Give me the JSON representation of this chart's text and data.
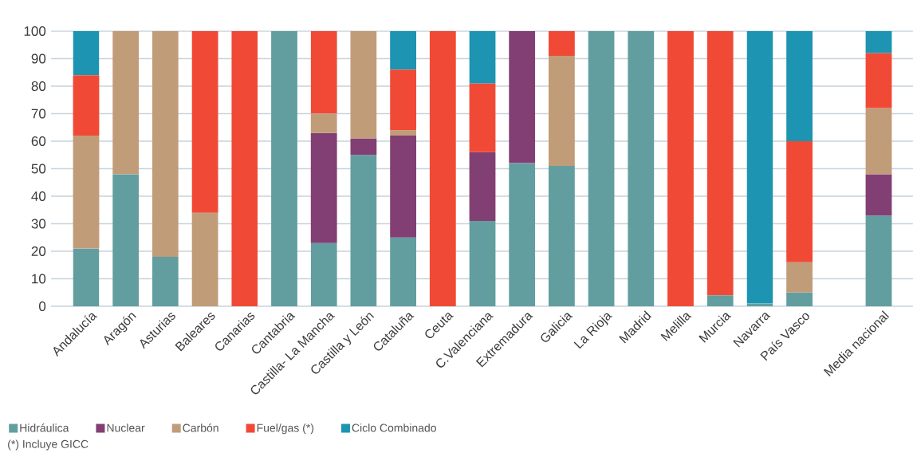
{
  "chart_data": {
    "type": "bar",
    "stacked": true,
    "categories": [
      "Andalucía",
      "Aragón",
      "Asturias",
      "Baleares",
      "Canarias",
      "Cantabria",
      "Castilla- La Mancha",
      "Castilla y León",
      "Cataluña",
      "Ceuta",
      "C.Valenciana",
      "Extremadura",
      "Galicia",
      "La Rioja",
      "Madrid",
      "Melilla",
      "Murcia",
      "Navarra",
      "País Vasco",
      null,
      "Media nacional"
    ],
    "series": [
      {
        "name": "Hidráulica",
        "color": "#629e9f",
        "values": [
          21,
          48,
          18,
          0,
          0,
          100,
          23,
          55,
          25,
          0,
          31,
          52,
          51,
          100,
          100,
          0,
          4,
          1,
          5,
          null,
          33
        ]
      },
      {
        "name": "Nuclear",
        "color": "#823f73",
        "values": [
          0,
          0,
          0,
          0,
          0,
          0,
          40,
          6,
          37,
          0,
          25,
          48,
          0,
          0,
          0,
          0,
          0,
          0,
          0,
          null,
          15
        ]
      },
      {
        "name": "Carbón",
        "color": "#c19c79",
        "values": [
          41,
          52,
          82,
          34,
          0,
          0,
          7,
          39,
          2,
          0,
          0,
          0,
          40,
          0,
          0,
          0,
          0,
          0,
          11,
          null,
          24
        ]
      },
      {
        "name": "Fuel/gas (*)",
        "color": "#f04a36",
        "values": [
          22,
          0,
          0,
          66,
          100,
          0,
          30,
          0,
          22,
          100,
          25,
          0,
          9,
          0,
          0,
          100,
          96,
          0,
          44,
          null,
          20
        ]
      },
      {
        "name": "Ciclo Combinado",
        "color": "#1c94b2",
        "values": [
          16,
          0,
          0,
          0,
          0,
          0,
          0,
          0,
          14,
          0,
          19,
          0,
          0,
          0,
          0,
          0,
          0,
          99,
          40,
          null,
          8
        ]
      }
    ],
    "ylim": [
      0,
      100
    ],
    "yticks": [
      0,
      10,
      20,
      30,
      40,
      50,
      60,
      70,
      80,
      90,
      100
    ],
    "grid": "y",
    "legend": "bottom",
    "annotations": [
      "(*) Incluye GICC"
    ]
  }
}
